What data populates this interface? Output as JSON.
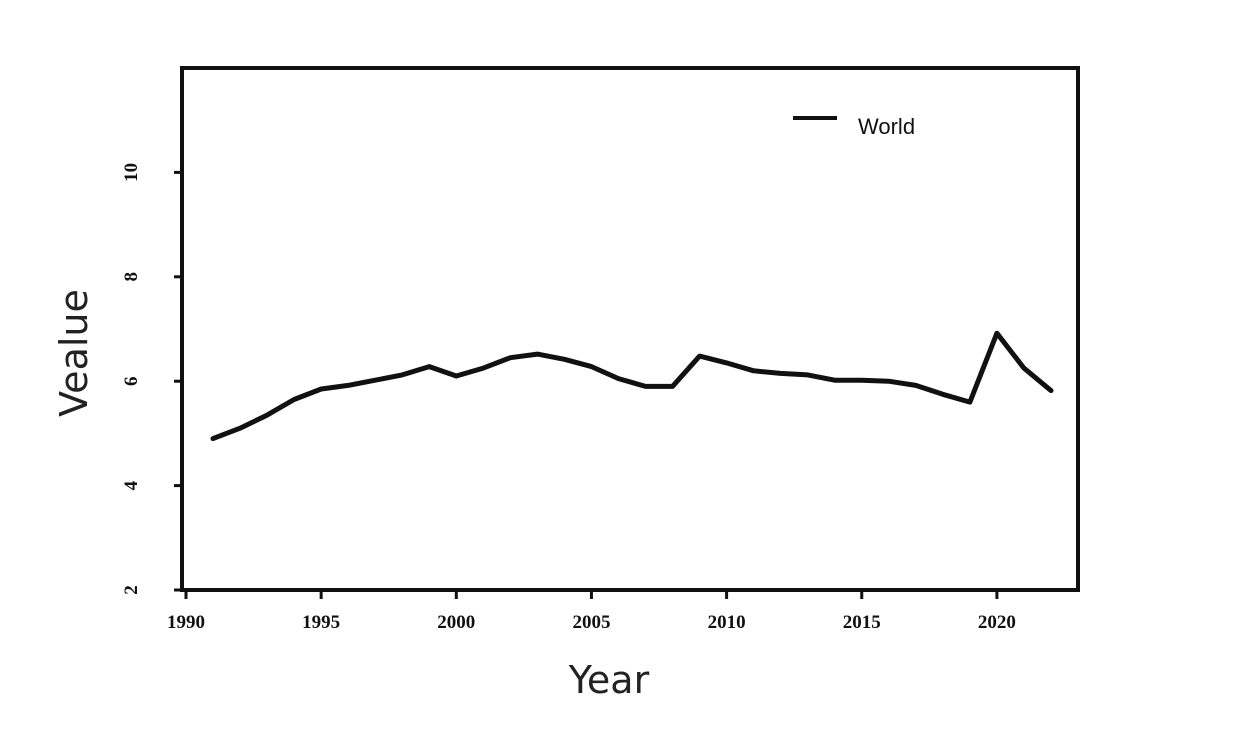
{
  "chart_data": {
    "type": "line",
    "xlabel": "Year",
    "ylabel": "Vealue",
    "xlim": [
      1990,
      2023
    ],
    "ylim": [
      2,
      12
    ],
    "xticks": [
      1990,
      1995,
      2000,
      2005,
      2010,
      2015,
      2020
    ],
    "yticks": [
      2,
      4,
      6,
      8,
      10
    ],
    "grid": false,
    "legend_position": "top-right",
    "series": [
      {
        "name": "World",
        "color": "#111111",
        "x": [
          1991,
          1992,
          1993,
          1994,
          1995,
          1996,
          1997,
          1998,
          1999,
          2000,
          2001,
          2002,
          2003,
          2004,
          2005,
          2006,
          2007,
          2008,
          2009,
          2010,
          2011,
          2012,
          2013,
          2014,
          2015,
          2016,
          2017,
          2018,
          2019,
          2020,
          2021,
          2022
        ],
        "values": [
          4.9,
          5.1,
          5.35,
          5.65,
          5.85,
          5.92,
          6.02,
          6.12,
          6.28,
          6.1,
          6.25,
          6.45,
          6.52,
          6.42,
          6.28,
          6.05,
          5.9,
          5.9,
          6.48,
          6.35,
          6.2,
          6.15,
          6.12,
          6.02,
          6.02,
          6.0,
          5.92,
          5.75,
          5.6,
          6.92,
          6.25,
          5.82
        ]
      }
    ]
  }
}
